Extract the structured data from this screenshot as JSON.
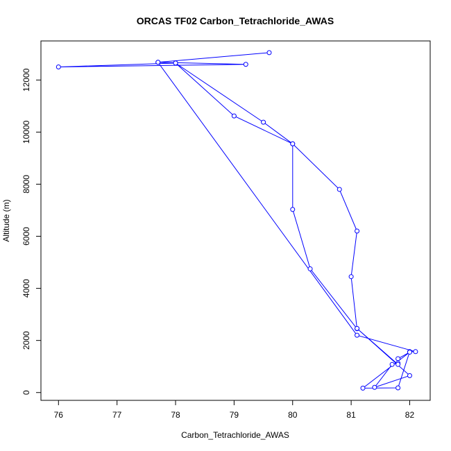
{
  "chart_data": {
    "type": "line",
    "title": "ORCAS TF02 Carbon_Tetrachloride_AWAS",
    "xlabel": "Carbon_Tetrachloride_AWAS",
    "ylabel": "Altitude (m)",
    "xlim": [
      75.7,
      82.35
    ],
    "ylim": [
      -300,
      13500
    ],
    "xticks": [
      76,
      77,
      78,
      79,
      80,
      81,
      82
    ],
    "yticks": [
      0,
      2000,
      4000,
      6000,
      8000,
      10000,
      12000
    ],
    "grid": false,
    "series": [
      {
        "color": "#0000ff",
        "marker": "open-circle",
        "x": [
          79.6,
          77.7,
          79.2,
          76.0,
          78.0,
          79.0,
          80.0,
          80.0,
          80.3,
          81.1,
          81.0,
          81.1,
          80.8,
          80.0,
          79.5,
          78.0,
          77.7,
          81.1,
          82.1,
          82.0,
          81.8,
          81.2,
          82.0,
          81.8,
          81.8,
          81.7,
          81.4,
          82.0,
          81.1,
          81.8
        ],
        "y": [
          13050,
          12680,
          12600,
          12500,
          12650,
          10620,
          9550,
          7030,
          4750,
          2450,
          4450,
          6200,
          7800,
          9550,
          10380,
          12650,
          12680,
          2200,
          1570,
          1570,
          180,
          170,
          1550,
          1300,
          1130,
          1080,
          200,
          650,
          2460,
          1080
        ]
      }
    ]
  }
}
